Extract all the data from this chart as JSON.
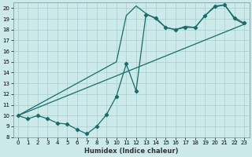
{
  "xlabel": "Humidex (Indice chaleur)",
  "background_color": "#cceaea",
  "line_color": "#1a6b6b",
  "grid_color": "#aacccc",
  "xlim": [
    -0.5,
    23.5
  ],
  "ylim": [
    8,
    20.5
  ],
  "yticks": [
    8,
    9,
    10,
    11,
    12,
    13,
    14,
    15,
    16,
    17,
    18,
    19,
    20
  ],
  "xticks": [
    0,
    1,
    2,
    3,
    4,
    5,
    6,
    7,
    8,
    9,
    10,
    11,
    12,
    13,
    14,
    15,
    16,
    17,
    18,
    19,
    20,
    21,
    22,
    23
  ],
  "line1_x": [
    0,
    1,
    2,
    3,
    4,
    5,
    6,
    7,
    8,
    9,
    10,
    11,
    12,
    13,
    14,
    15,
    16,
    17,
    18,
    19,
    20,
    21,
    22,
    23
  ],
  "line1_y": [
    10.0,
    9.7,
    10.0,
    9.7,
    9.3,
    9.2,
    8.7,
    8.3,
    9.0,
    10.1,
    11.8,
    14.8,
    12.3,
    19.4,
    19.1,
    18.2,
    18.0,
    18.2,
    18.2,
    19.3,
    20.2,
    20.3,
    19.1,
    18.6
  ],
  "line2_x": [
    0,
    10,
    11,
    12,
    13,
    14,
    15,
    16,
    17,
    18,
    19,
    20,
    21,
    22,
    23
  ],
  "line2_y": [
    10.0,
    15.0,
    19.3,
    20.2,
    19.5,
    19.0,
    18.2,
    18.0,
    18.3,
    18.2,
    19.3,
    20.1,
    20.3,
    19.0,
    18.5
  ],
  "line3_x": [
    0,
    23
  ],
  "line3_y": [
    10.0,
    18.5
  ]
}
